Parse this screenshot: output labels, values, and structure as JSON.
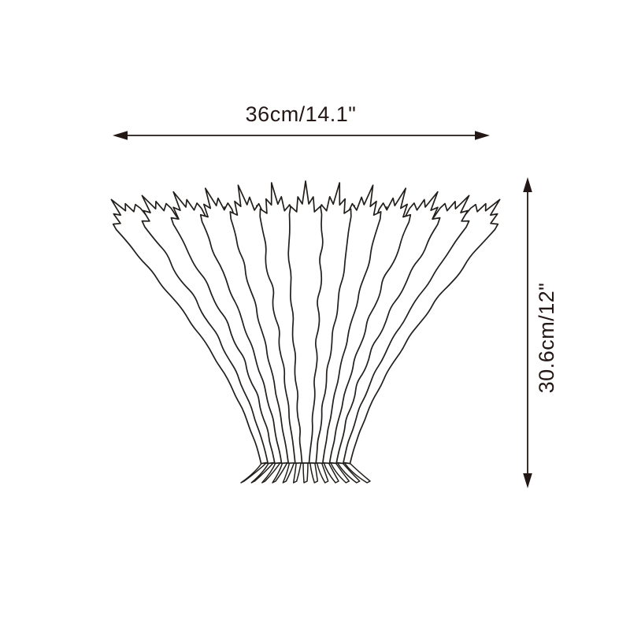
{
  "diagram": {
    "subject": "acanthus-leaf-fan-sconce-line-drawing",
    "width_label": "36cm/14.1\"",
    "height_label": "30.6cm/12\"",
    "dimension_color": "#231815",
    "drawing_line_color": "#221e1b",
    "drawing_fill_color": "#ffffff",
    "background_color": "#ffffff"
  }
}
